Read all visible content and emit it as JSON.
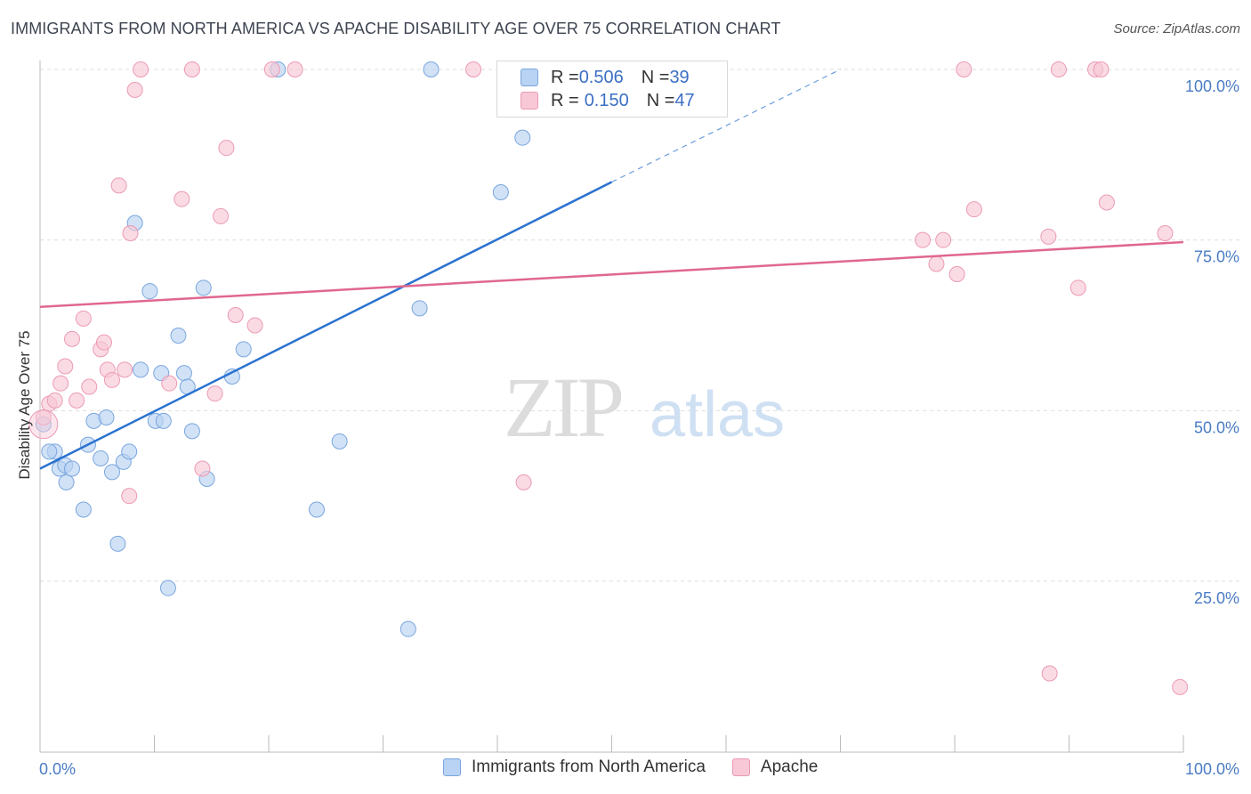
{
  "title": "IMMIGRANTS FROM NORTH AMERICA VS APACHE DISABILITY AGE OVER 75 CORRELATION CHART",
  "source": "Source: ZipAtlas.com",
  "watermark": {
    "zip": "ZIP",
    "atlas": "atlas"
  },
  "legend_top": {
    "rows": [
      {
        "r_label": "R = ",
        "r_value": "0.506",
        "n_label": "N = ",
        "n_value": "39"
      },
      {
        "r_label": "R = ",
        "r_value": "0.150",
        "n_label": "N = ",
        "n_value": "47"
      }
    ]
  },
  "legend_bottom": {
    "series1": "Immigrants from North America",
    "series2": "Apache"
  },
  "colors": {
    "blue_fill": "#b8d3f3",
    "blue_stroke": "#7aa6de",
    "blue_line": "#2a72d0",
    "pink_fill": "#f8c8d6",
    "pink_stroke": "#ec9ab4",
    "pink_line": "#e0678f",
    "tick_text": "#4a7cc4",
    "grid": "#dddddd"
  },
  "chart_data": {
    "type": "scatter",
    "title": "IMMIGRANTS FROM NORTH AMERICA VS APACHE DISABILITY AGE OVER 75 CORRELATION CHART",
    "xlabel": "",
    "ylabel": "Disability Age Over 75",
    "xlim": [
      0,
      100
    ],
    "ylim": [
      5,
      102
    ],
    "x_tick_labels": [
      {
        "value": 0,
        "label": "0.0%"
      },
      {
        "value": 100,
        "label": "100.0%"
      }
    ],
    "y_tick_labels": [
      {
        "value": 25,
        "label": "25.0%"
      },
      {
        "value": 50,
        "label": "50.0%"
      },
      {
        "value": 75,
        "label": "75.0%"
      },
      {
        "value": 100,
        "label": "100.0%"
      }
    ],
    "grid": true,
    "series": [
      {
        "name": "Immigrants from North America",
        "r": 0.506,
        "n": 39,
        "trend": {
          "x0": 0,
          "y0": 41.5,
          "x1": 50,
          "y1": 83.5,
          "dashed_to_x": 70,
          "dashed_to_y": 100
        },
        "points": [
          [
            0.3,
            48
          ],
          [
            1.3,
            44
          ],
          [
            1.7,
            41.5
          ],
          [
            2.2,
            42
          ],
          [
            2.3,
            39.5
          ],
          [
            2.8,
            41.5
          ],
          [
            3.8,
            35.5
          ],
          [
            4.2,
            45
          ],
          [
            4.7,
            48.5
          ],
          [
            5.3,
            43
          ],
          [
            5.8,
            49
          ],
          [
            6.3,
            41
          ],
          [
            6.8,
            30.5
          ],
          [
            7.3,
            42.5
          ],
          [
            7.8,
            44
          ],
          [
            8.3,
            77.5
          ],
          [
            8.8,
            56
          ],
          [
            9.6,
            67.5
          ],
          [
            10.1,
            48.5
          ],
          [
            10.6,
            55.5
          ],
          [
            10.8,
            48.5
          ],
          [
            11.2,
            24
          ],
          [
            12.1,
            61
          ],
          [
            12.6,
            55.5
          ],
          [
            12.9,
            53.5
          ],
          [
            13.3,
            47
          ],
          [
            14.3,
            68
          ],
          [
            14.6,
            40
          ],
          [
            16.8,
            55
          ],
          [
            17.8,
            59
          ],
          [
            20.8,
            100
          ],
          [
            24.2,
            35.5
          ],
          [
            26.2,
            45.5
          ],
          [
            32.2,
            18
          ],
          [
            33.2,
            65
          ],
          [
            34.2,
            100
          ],
          [
            40.3,
            82
          ],
          [
            42.2,
            90
          ],
          [
            0.8,
            44
          ]
        ]
      },
      {
        "name": "Apache",
        "r": 0.15,
        "n": 47,
        "trend": {
          "x0": 0,
          "y0": 65.2,
          "x1": 100,
          "y1": 74.7
        },
        "points": [
          [
            0.3,
            49
          ],
          [
            0.8,
            51
          ],
          [
            1.3,
            51.5
          ],
          [
            1.8,
            54
          ],
          [
            2.2,
            56.5
          ],
          [
            2.8,
            60.5
          ],
          [
            3.2,
            51.5
          ],
          [
            3.8,
            63.5
          ],
          [
            4.3,
            53.5
          ],
          [
            5.3,
            59
          ],
          [
            5.6,
            60
          ],
          [
            5.9,
            56
          ],
          [
            6.3,
            54.5
          ],
          [
            6.9,
            83
          ],
          [
            7.4,
            56
          ],
          [
            7.8,
            37.5
          ],
          [
            7.9,
            76
          ],
          [
            8.3,
            97
          ],
          [
            8.8,
            100
          ],
          [
            11.3,
            54
          ],
          [
            12.4,
            81
          ],
          [
            13.3,
            100
          ],
          [
            14.2,
            41.5
          ],
          [
            15.3,
            52.5
          ],
          [
            15.8,
            78.5
          ],
          [
            16.3,
            88.5
          ],
          [
            17.1,
            64
          ],
          [
            18.8,
            62.5
          ],
          [
            20.3,
            100
          ],
          [
            22.3,
            100
          ],
          [
            37.9,
            100
          ],
          [
            42.3,
            39.5
          ],
          [
            77.2,
            75
          ],
          [
            78.4,
            71.5
          ],
          [
            79.0,
            75
          ],
          [
            80.2,
            70
          ],
          [
            80.8,
            100
          ],
          [
            81.7,
            79.5
          ],
          [
            88.2,
            75.5
          ],
          [
            88.3,
            11.5
          ],
          [
            89.1,
            100
          ],
          [
            90.8,
            68
          ],
          [
            92.3,
            100
          ],
          [
            92.8,
            100
          ],
          [
            93.3,
            80.5
          ],
          [
            98.4,
            76
          ],
          [
            99.7,
            9.5
          ]
        ]
      }
    ]
  }
}
